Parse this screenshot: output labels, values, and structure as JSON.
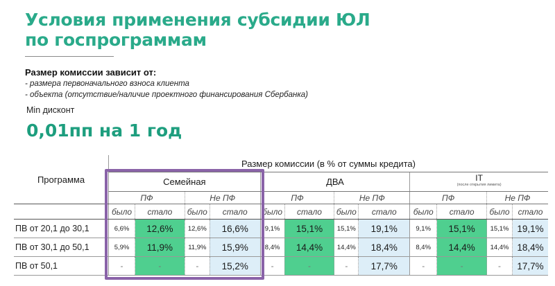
{
  "page": {
    "title_line1": "Условия применения субсидии ЮЛ",
    "title_line2": "по госпрограммам",
    "conditions_heading": "Размер комиссии зависит от:",
    "conditions": [
      "- размера первоначального взноса клиента",
      "- объекта (отсутствие/наличие проектного финансирования Сбербанка)"
    ],
    "min_label": "Min дисконт",
    "min_value": "0,01пп на 1 год"
  },
  "colors": {
    "title": "#2aaa8a",
    "highlight_cells": "#4fcf8f",
    "light_cells": "#ddeef8",
    "frame": "#8a63a8"
  },
  "table": {
    "program_header": "Программа",
    "commission_header": "Размер комиссии (в % от суммы кредита)",
    "groups": [
      {
        "name": "Семейная",
        "note": ""
      },
      {
        "name": "ДВА",
        "note": ""
      },
      {
        "name": "IT",
        "note": "(после открытия лимита)"
      }
    ],
    "sub_pf": "ПФ",
    "sub_nopf": "Не ПФ",
    "was": "было",
    "now": "стало",
    "rows": [
      {
        "program": "ПВ от 20,1 до 30,1",
        "values": [
          "6,6%",
          "12,6%",
          "12,6%",
          "16,6%",
          "9,1%",
          "15,1%",
          "15,1%",
          "19,1%",
          "9,1%",
          "15,1%",
          "15,1%",
          "19,1%"
        ]
      },
      {
        "program": "ПВ от 30,1 до 50,1",
        "values": [
          "5,9%",
          "11,9%",
          "11,9%",
          "15,9%",
          "8,4%",
          "14,4%",
          "14,4%",
          "18,4%",
          "8,4%",
          "14,4%",
          "14,4%",
          "18,4%"
        ]
      },
      {
        "program": "ПВ от 50,1",
        "values": [
          "-",
          "-",
          "-",
          "15,2%",
          "-",
          "-",
          "-",
          "17,7%",
          "-",
          "-",
          "-",
          "17,7%"
        ]
      }
    ]
  }
}
